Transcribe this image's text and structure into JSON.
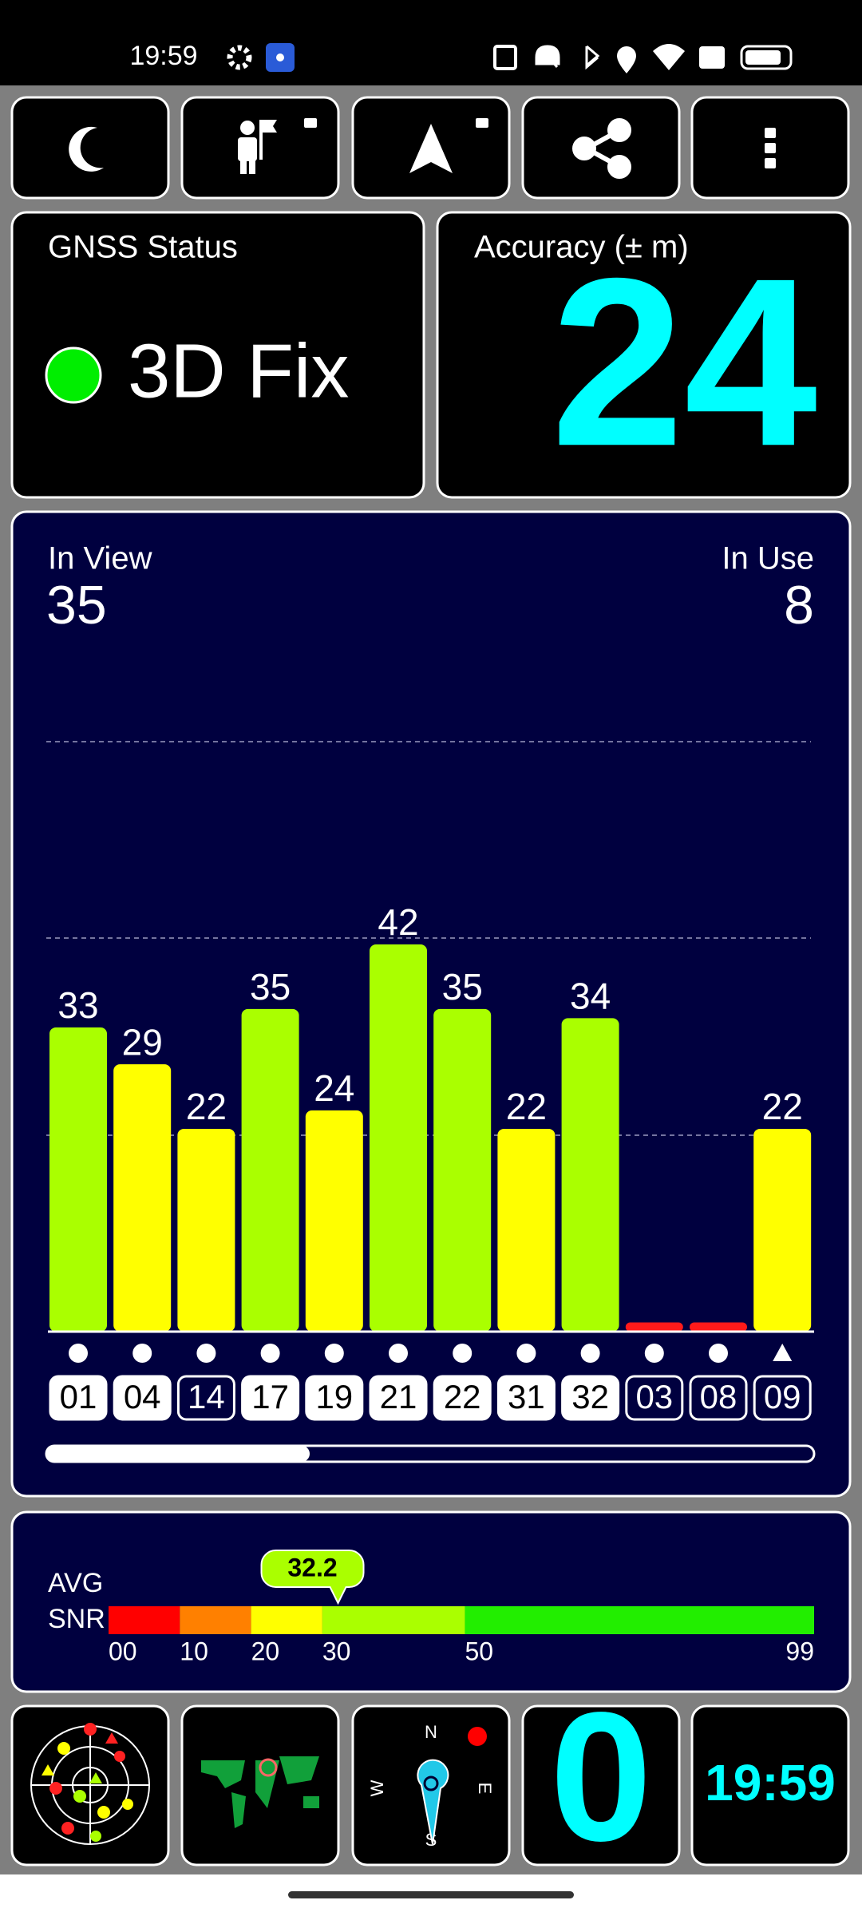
{
  "status_bar": {
    "time": "19:59"
  },
  "gnss_status": {
    "title": "GNSS Status",
    "fix": "3D Fix"
  },
  "accuracy": {
    "title": "Accuracy (± m)",
    "value": 24
  },
  "satellites": {
    "in_view_label": "In View",
    "in_view": 35,
    "in_use_label": "In Use",
    "in_use": 8
  },
  "chart_data": {
    "type": "bar",
    "categories": [
      "01",
      "04",
      "14",
      "17",
      "19",
      "21",
      "22",
      "31",
      "32",
      "03",
      "08",
      "09"
    ],
    "values": [
      33,
      29,
      22,
      35,
      24,
      42,
      35,
      22,
      34,
      1,
      1,
      22
    ],
    "value_labels": [
      "33",
      "29",
      "22",
      "35",
      "24",
      "42",
      "35",
      "22",
      "34",
      null,
      null,
      "22"
    ],
    "colors": [
      "#aaff00",
      "#ffff00",
      "#ffff00",
      "#aaff00",
      "#ffff00",
      "#aaff00",
      "#aaff00",
      "#ffff00",
      "#aaff00",
      "#ff1a1a",
      "#ff1a1a",
      "#ffff00"
    ],
    "used": [
      true,
      true,
      false,
      true,
      true,
      true,
      true,
      true,
      true,
      false,
      false,
      false
    ],
    "shapes": [
      "circle",
      "circle",
      "circle",
      "circle",
      "circle",
      "circle",
      "circle",
      "circle",
      "circle",
      "circle",
      "circle",
      "triangle"
    ],
    "ylim": [
      0,
      64
    ],
    "yticks": [
      21.3,
      42.7,
      64
    ],
    "grid": true
  },
  "avg_snr": {
    "label_1": "AVG",
    "label_2": "SNR",
    "value": 32.2,
    "xlim": [
      0,
      99
    ],
    "xticks": [
      {
        "value": 0,
        "label": "00"
      },
      10,
      20,
      30,
      50,
      99
    ],
    "band_colors": [
      "#ff0000",
      "#ff8000",
      "#ffff00",
      "#aaff00",
      "#22ee00"
    ]
  },
  "tiles": {
    "compass": {
      "n": "N",
      "e": "E",
      "s": "S",
      "w": "W"
    },
    "count": 0,
    "clock": "19:59"
  }
}
